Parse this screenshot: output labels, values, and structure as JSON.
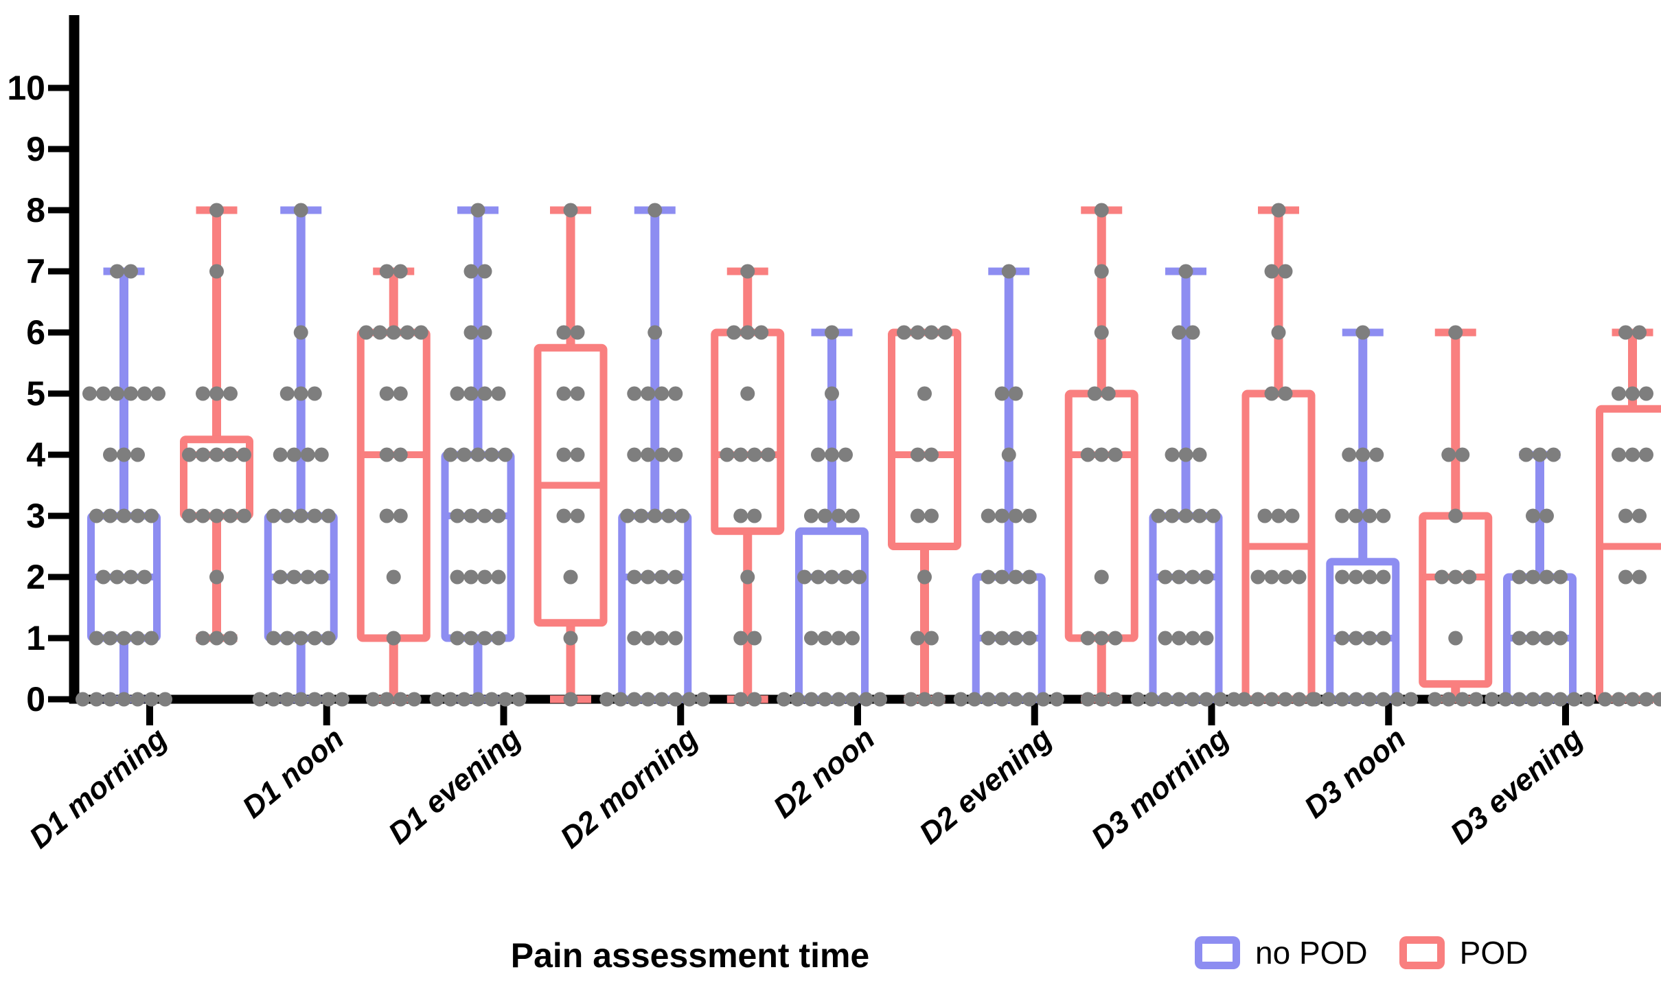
{
  "chart_data": {
    "type": "boxplot_with_scatter",
    "title": "",
    "xlabel": "Pain assessment time",
    "ylabel": "",
    "ylim": [
      0,
      10
    ],
    "yticks": [
      0,
      1,
      2,
      3,
      4,
      5,
      6,
      7,
      8,
      9,
      10
    ],
    "grid": false,
    "legend_position": "bottom-right",
    "axis_color": "#000000",
    "dot_color": "#7E7E7E",
    "categories": [
      "D1 morning",
      "D1 noon",
      "D1 evening",
      "D2 morning",
      "D2 noon",
      "D2 evening",
      "D3 morning",
      "D3 noon",
      "D3 evening"
    ],
    "series": [
      {
        "name": "no POD",
        "color": "#8D8DF1",
        "boxes": [
          {
            "min": 0,
            "q1": 1,
            "median": 2,
            "q3": 3,
            "max": 7
          },
          {
            "min": 0,
            "q1": 1,
            "median": 2,
            "q3": 3,
            "max": 8
          },
          {
            "min": 0,
            "q1": 1,
            "median": 3,
            "q3": 4,
            "max": 8
          },
          {
            "min": 0,
            "q1": 0,
            "median": 2,
            "q3": 3,
            "max": 8
          },
          {
            "min": 0,
            "q1": 0,
            "median": 2,
            "q3": 2.75,
            "max": 6
          },
          {
            "min": 0,
            "q1": 0,
            "median": 1,
            "q3": 2,
            "max": 7
          },
          {
            "min": 0,
            "q1": 0,
            "median": 2,
            "q3": 3,
            "max": 7
          },
          {
            "min": 0,
            "q1": 0,
            "median": 1,
            "q3": 2.25,
            "max": 6
          },
          {
            "min": 0,
            "q1": 0,
            "median": 1,
            "q3": 2,
            "max": 4
          }
        ],
        "points": [
          [
            [
              7,
              2
            ],
            [
              5,
              6
            ],
            [
              4,
              3
            ],
            [
              3,
              5
            ],
            [
              2,
              4
            ],
            [
              1,
              5
            ],
            [
              0,
              7
            ]
          ],
          [
            [
              8,
              1
            ],
            [
              6,
              1
            ],
            [
              5,
              3
            ],
            [
              4,
              4
            ],
            [
              3,
              5
            ],
            [
              2,
              4
            ],
            [
              1,
              5
            ],
            [
              0,
              7
            ]
          ],
          [
            [
              8,
              1
            ],
            [
              7,
              2
            ],
            [
              6,
              2
            ],
            [
              5,
              4
            ],
            [
              4,
              5
            ],
            [
              3,
              4
            ],
            [
              2,
              4
            ],
            [
              1,
              4
            ],
            [
              0,
              7
            ]
          ],
          [
            [
              8,
              1
            ],
            [
              6,
              1
            ],
            [
              5,
              4
            ],
            [
              4,
              4
            ],
            [
              3,
              5
            ],
            [
              2,
              4
            ],
            [
              1,
              4
            ],
            [
              0,
              8
            ]
          ],
          [
            [
              6,
              1
            ],
            [
              5,
              1
            ],
            [
              4,
              3
            ],
            [
              3,
              4
            ],
            [
              2,
              5
            ],
            [
              1,
              4
            ],
            [
              0,
              8
            ]
          ],
          [
            [
              7,
              1
            ],
            [
              5,
              2
            ],
            [
              4,
              1
            ],
            [
              3,
              4
            ],
            [
              2,
              4
            ],
            [
              1,
              4
            ],
            [
              0,
              8
            ]
          ],
          [
            [
              7,
              1
            ],
            [
              6,
              2
            ],
            [
              4,
              3
            ],
            [
              3,
              5
            ],
            [
              2,
              4
            ],
            [
              1,
              4
            ],
            [
              0,
              8
            ]
          ],
          [
            [
              6,
              1
            ],
            [
              4,
              3
            ],
            [
              3,
              4
            ],
            [
              2,
              4
            ],
            [
              1,
              4
            ],
            [
              0,
              8
            ]
          ],
          [
            [
              4,
              3
            ],
            [
              3,
              2
            ],
            [
              2,
              4
            ],
            [
              1,
              4
            ],
            [
              0,
              8
            ]
          ]
        ]
      },
      {
        "name": "POD",
        "color": "#F97F7F",
        "boxes": [
          {
            "min": 1,
            "q1": 3,
            "median": 4,
            "q3": 4.25,
            "max": 8
          },
          {
            "min": 0,
            "q1": 1,
            "median": 4,
            "q3": 6,
            "max": 7
          },
          {
            "min": 0,
            "q1": 1.25,
            "median": 3.5,
            "q3": 5.75,
            "max": 8
          },
          {
            "min": 0,
            "q1": 2.75,
            "median": 4,
            "q3": 6,
            "max": 7
          },
          {
            "min": 0,
            "q1": 2.5,
            "median": 4,
            "q3": 6,
            "max": 6
          },
          {
            "min": 0,
            "q1": 1,
            "median": 4,
            "q3": 5,
            "max": 8
          },
          {
            "min": 0,
            "q1": 0,
            "median": 2.5,
            "q3": 5,
            "max": 8
          },
          {
            "min": 0,
            "q1": 0.25,
            "median": 2,
            "q3": 3,
            "max": 6
          },
          {
            "min": 0,
            "q1": 0,
            "median": 2.5,
            "q3": 4.75,
            "max": 6
          }
        ],
        "points": [
          [
            [
              8,
              1
            ],
            [
              7,
              1
            ],
            [
              5,
              3
            ],
            [
              4,
              5
            ],
            [
              3,
              5
            ],
            [
              2,
              1
            ],
            [
              1,
              3
            ]
          ],
          [
            [
              7,
              2
            ],
            [
              6,
              5
            ],
            [
              5,
              2
            ],
            [
              4,
              2
            ],
            [
              3,
              2
            ],
            [
              2,
              1
            ],
            [
              1,
              1
            ],
            [
              0,
              4
            ]
          ],
          [
            [
              8,
              1
            ],
            [
              6,
              2
            ],
            [
              5,
              2
            ],
            [
              4,
              2
            ],
            [
              3,
              2
            ],
            [
              2,
              1
            ],
            [
              1,
              1
            ],
            [
              0,
              1
            ]
          ],
          [
            [
              7,
              1
            ],
            [
              6,
              3
            ],
            [
              5,
              1
            ],
            [
              4,
              4
            ],
            [
              3,
              2
            ],
            [
              2,
              1
            ],
            [
              1,
              2
            ],
            [
              0,
              2
            ]
          ],
          [
            [
              6,
              4
            ],
            [
              5,
              1
            ],
            [
              4,
              2
            ],
            [
              3,
              2
            ],
            [
              2,
              1
            ],
            [
              1,
              2
            ],
            [
              0,
              3
            ]
          ],
          [
            [
              8,
              1
            ],
            [
              7,
              1
            ],
            [
              6,
              1
            ],
            [
              5,
              2
            ],
            [
              4,
              3
            ],
            [
              2,
              1
            ],
            [
              1,
              3
            ],
            [
              0,
              3
            ]
          ],
          [
            [
              8,
              1
            ],
            [
              7,
              2
            ],
            [
              6,
              1
            ],
            [
              5,
              2
            ],
            [
              3,
              3
            ],
            [
              2,
              4
            ],
            [
              0,
              6
            ]
          ],
          [
            [
              6,
              1
            ],
            [
              4,
              2
            ],
            [
              3,
              1
            ],
            [
              2,
              3
            ],
            [
              1,
              1
            ],
            [
              0,
              4
            ]
          ],
          [
            [
              6,
              2
            ],
            [
              5,
              3
            ],
            [
              4,
              3
            ],
            [
              3,
              2
            ],
            [
              2,
              2
            ],
            [
              0,
              5
            ]
          ]
        ]
      }
    ]
  }
}
